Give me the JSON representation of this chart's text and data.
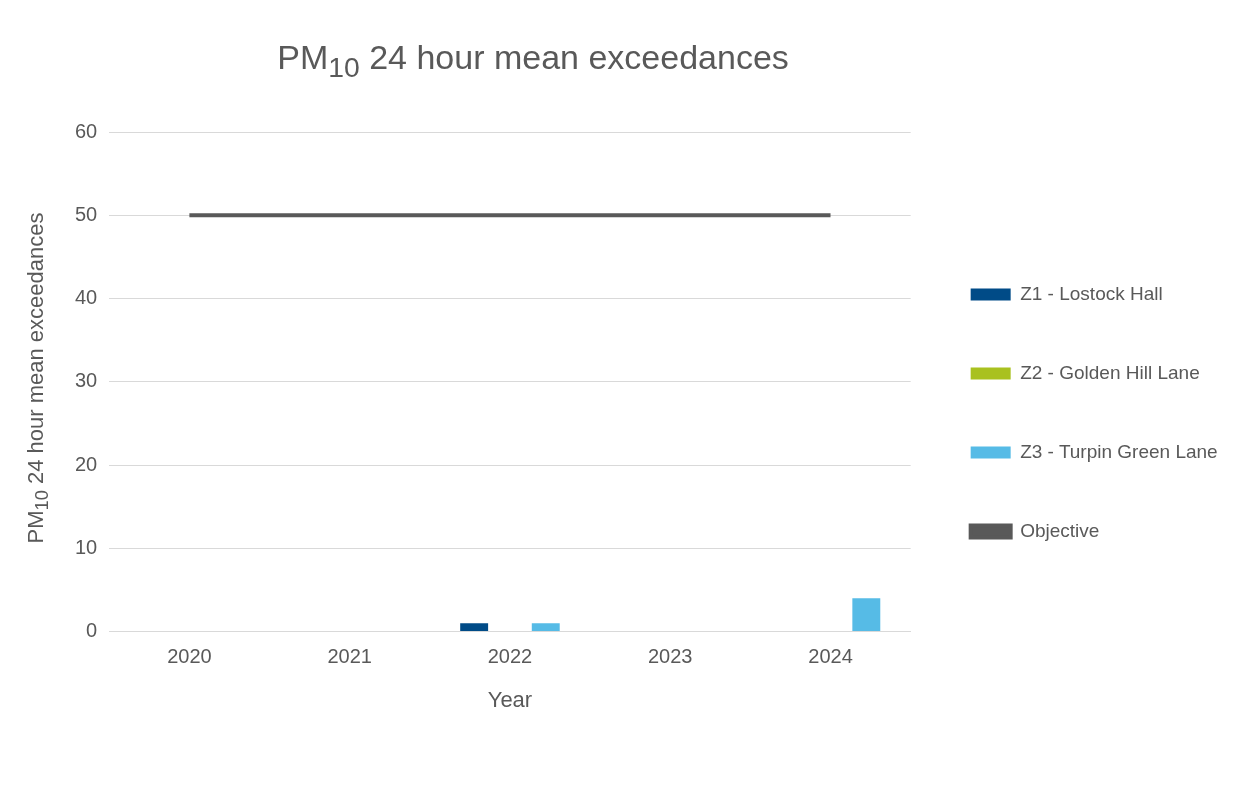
{
  "chart_data": {
    "type": "bar",
    "title": "PM$_{10}$ 24 hour mean exceedances",
    "xlabel": "Year",
    "ylabel": "PM$_{10}$ 24 hour mean exceedances",
    "categories": [
      "2020",
      "2021",
      "2022",
      "2023",
      "2024"
    ],
    "series": [
      {
        "name": "Z1 - Lostock Hall",
        "color": "#004b87",
        "values": [
          0,
          0,
          1,
          0,
          0
        ]
      },
      {
        "name": "Z2 - Golden Hill Lane",
        "color": "#a9c11f",
        "values": [
          0,
          0,
          0,
          0,
          0
        ]
      },
      {
        "name": "Z3 - Turpin Green Lane",
        "color": "#56bbe6",
        "values": [
          0,
          0,
          1,
          0,
          4
        ]
      },
      {
        "name": "Objective",
        "type": "line",
        "color": "#595959",
        "values": [
          50,
          50,
          50,
          50,
          50
        ]
      }
    ],
    "ylim": [
      0,
      60
    ],
    "yticks": [
      0,
      10,
      20,
      30,
      40,
      50,
      60
    ],
    "grid": "y",
    "legend": "right",
    "marker": "none"
  }
}
